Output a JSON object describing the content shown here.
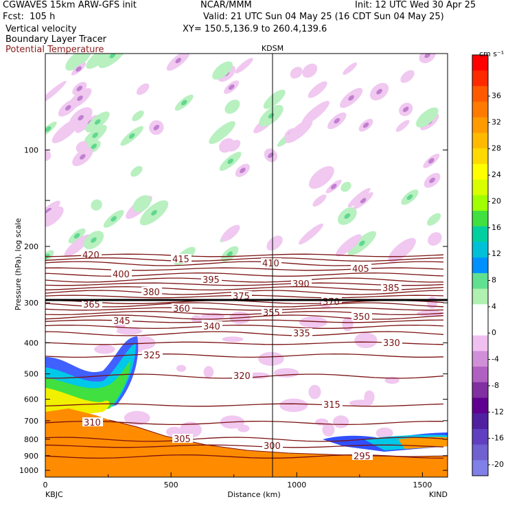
{
  "header": {
    "model": "CGWAVES 15km ARW-GFS init",
    "fcst": "Fcst:  105 h",
    "field1": "Vertical velocity",
    "field2": "Boundary Layer Tracer",
    "field3": "Potential Temperature",
    "center": "NCAR/MMM",
    "init": "Init: 12 UTC Wed 30 Apr 25",
    "valid": "Valid: 21 UTC Sun 04 May 25 (16 CDT Sun 04 May 25)",
    "xy": "XY= 150.5,136.9 to 260.4,139.6"
  },
  "chart_data": {
    "type": "contour cross-section",
    "marker_label": "KDSM",
    "marker_x_km": 940,
    "xlabel": "Distance (km)",
    "ylabel": "Pressure (hPa), log scale",
    "x_ticks": [
      "0",
      "500",
      "1000",
      "1500"
    ],
    "xlim": [
      0,
      1600
    ],
    "y_ticks": [
      "100",
      "200",
      "300",
      "400",
      "500",
      "600",
      "700",
      "800",
      "900",
      "1000"
    ],
    "y_scale": "log",
    "left_station": "KBJC",
    "right_station": "KIND",
    "colorbar": {
      "unit": "cm s⁻¹",
      "labels": [
        "36",
        "32",
        "28",
        "24",
        "20",
        "16",
        "12",
        "8",
        "4",
        "0",
        "-4",
        "-8",
        "-12",
        "-16",
        "-20"
      ],
      "colors": [
        "#ff0000",
        "#ff2a00",
        "#ff5a00",
        "#ff7a00",
        "#ff9a00",
        "#ffba00",
        "#ffda00",
        "#ffff00",
        "#d8ff00",
        "#a0ff00",
        "#40e040",
        "#00d0a0",
        "#00c0d8",
        "#0090ff",
        "#60e090",
        "#b0f0b0",
        "#ffffff",
        "#ffffff",
        "#f0c0f0",
        "#d090d8",
        "#b060c0",
        "#8030a0",
        "#600090",
        "#5020a0",
        "#6040c0",
        "#7060d0",
        "#8080e8"
      ]
    },
    "theta_labels": [
      "420",
      "415",
      "410",
      "405",
      "400",
      "395",
      "390",
      "385",
      "380",
      "375",
      "370",
      "365",
      "360",
      "355",
      "350",
      "345",
      "340",
      "335",
      "330",
      "325",
      "320",
      "315",
      "310",
      "305",
      "300",
      "295"
    ]
  }
}
